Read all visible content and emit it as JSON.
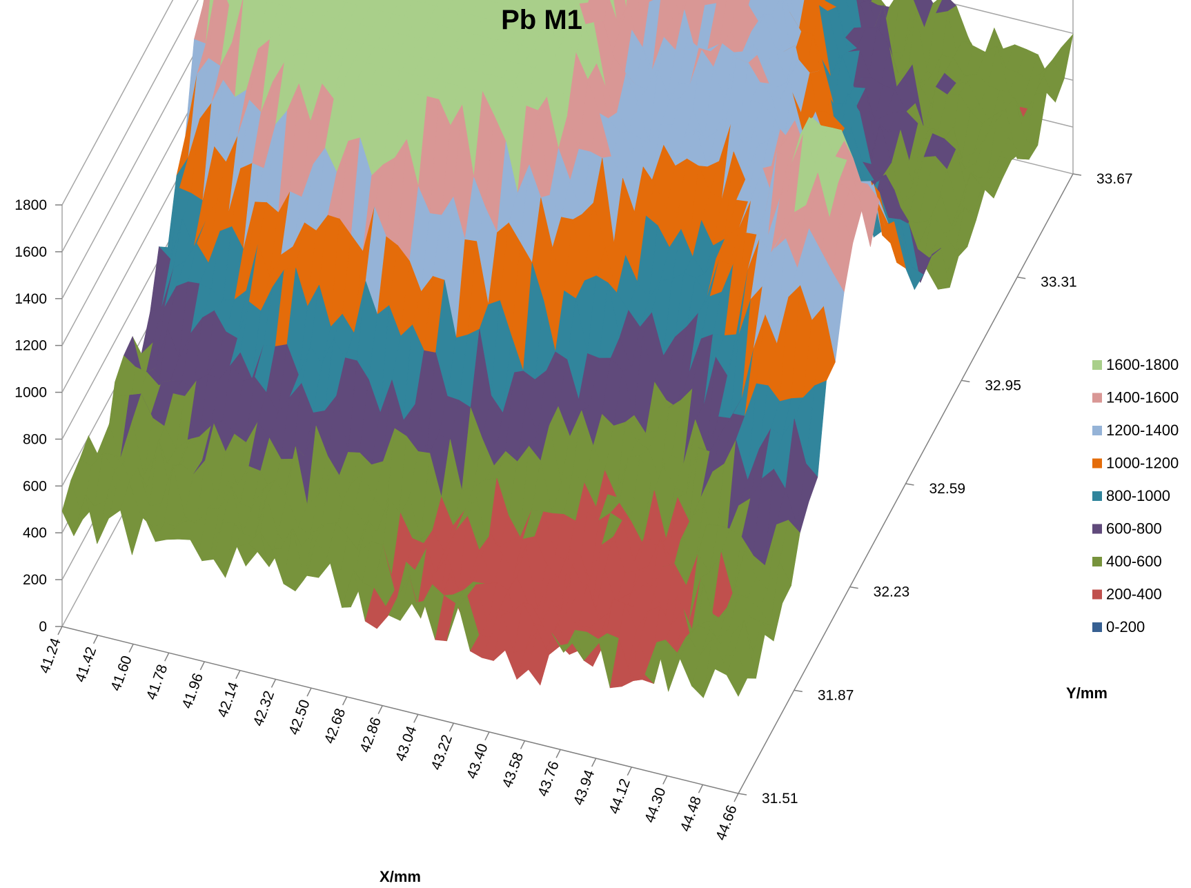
{
  "chart_data": {
    "type": "surface",
    "title": "Pb M1",
    "xlabel": "X/mm",
    "ylabel": "Y/mm",
    "zlim": [
      0,
      1800
    ],
    "z_ticks": [
      "0",
      "200",
      "400",
      "600",
      "800",
      "1000",
      "1200",
      "1400",
      "1600",
      "1800"
    ],
    "x_ticks": [
      "41.24",
      "41.42",
      "41.60",
      "41.78",
      "41.96",
      "42.14",
      "42.32",
      "42.50",
      "42.68",
      "42.86",
      "43.04",
      "43.22",
      "43.40",
      "43.58",
      "43.76",
      "43.94",
      "44.12",
      "44.30",
      "44.48",
      "44.66"
    ],
    "y_ticks": [
      "31.51",
      "31.87",
      "32.23",
      "32.59",
      "32.95",
      "33.31",
      "33.67"
    ],
    "grid": true,
    "legend_position": "right",
    "legend": [
      {
        "label": "1600-1800",
        "color": "#a9cf8a"
      },
      {
        "label": "1400-1600",
        "color": "#d99795"
      },
      {
        "label": "1200-1400",
        "color": "#95b3d7"
      },
      {
        "label": "1000-1200",
        "color": "#e46c0a"
      },
      {
        "label": "800-1000",
        "color": "#31859c"
      },
      {
        "label": "600-800",
        "color": "#604a7b"
      },
      {
        "label": "400-600",
        "color": "#77933c"
      },
      {
        "label": "200-400",
        "color": "#c0504d"
      },
      {
        "label": "0-200",
        "color": "#376092"
      }
    ]
  }
}
